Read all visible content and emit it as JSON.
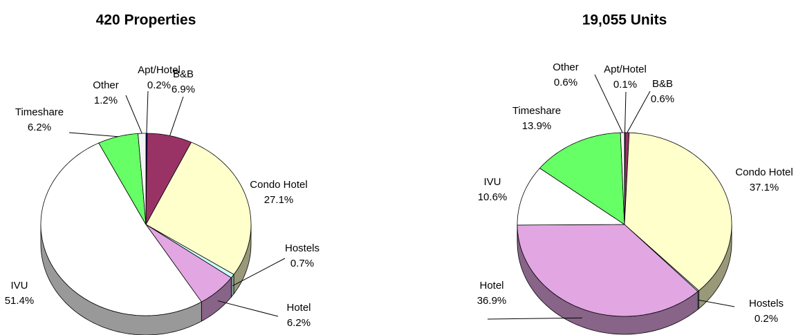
{
  "chart_data": [
    {
      "type": "pie",
      "title": "420 Properties",
      "categories": [
        "Apt/Hotel",
        "B&B",
        "Condo Hotel",
        "Hostels",
        "Hotel",
        "IVU",
        "Timeshare",
        "Other"
      ],
      "values": [
        0.2,
        6.9,
        27.1,
        0.7,
        6.2,
        51.4,
        6.2,
        1.2
      ],
      "value_labels": [
        "0.2%",
        "6.9%",
        "27.1%",
        "0.7%",
        "6.2%",
        "51.4%",
        "6.2%",
        "1.2%"
      ],
      "colors": [
        "#000080",
        "#993366",
        "#ffffcc",
        "#ccffff",
        "#e2a6e2",
        "#ffffff",
        "#66ff66",
        "#f4f4f4"
      ]
    },
    {
      "type": "pie",
      "title": "19,055 Units",
      "categories": [
        "Apt/Hotel",
        "B&B",
        "Condo Hotel",
        "Hostels",
        "Hotel",
        "IVU",
        "Timeshare",
        "Other"
      ],
      "values": [
        0.1,
        0.6,
        37.1,
        0.2,
        36.9,
        10.6,
        13.9,
        0.6
      ],
      "value_labels": [
        "0.1%",
        "0.6%",
        "37.1%",
        "0.2%",
        "36.9%",
        "10.6%",
        "13.9%",
        "0.6%"
      ],
      "colors": [
        "#000080",
        "#993366",
        "#ffffcc",
        "#ccffff",
        "#e2a6e2",
        "#ffffff",
        "#66ff66",
        "#f4f4f4"
      ]
    }
  ]
}
